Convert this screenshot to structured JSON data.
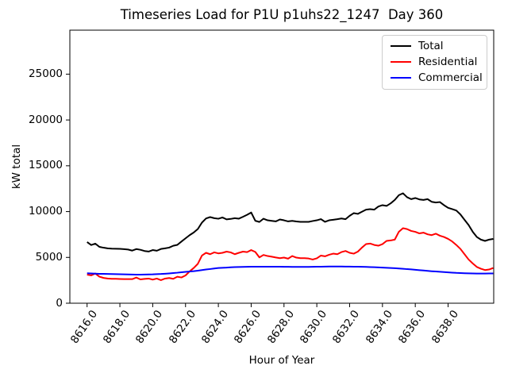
{
  "title": "Timeseries Load for P1U p1uhs22_1247  Day 360",
  "chart_data": {
    "type": "line",
    "title": "Timeseries Load for P1U p1uhs22_1247  Day 360",
    "xlabel": "Hour of Year",
    "ylabel": "kW total",
    "xlim": [
      8614.95,
      8640.78
    ],
    "ylim": [
      0,
      29800
    ],
    "grid": false,
    "legend_position": "upper right",
    "x_ticks": [
      8616,
      8618,
      8620,
      8622,
      8624,
      8626,
      8628,
      8630,
      8632,
      8634,
      8636,
      8638
    ],
    "x_tick_labels": [
      "8616.0",
      "8618.0",
      "8620.0",
      "8622.0",
      "8624.0",
      "8626.0",
      "8628.0",
      "8630.0",
      "8632.0",
      "8634.0",
      "8636.0",
      "8638.0"
    ],
    "y_ticks": [
      0,
      5000,
      10000,
      15000,
      20000,
      25000
    ],
    "y_tick_labels": [
      "0",
      "5000",
      "10000",
      "15000",
      "20000",
      "25000"
    ],
    "x_start": 8616.0,
    "x_step": 0.25,
    "series": [
      {
        "name": "Total",
        "color": "#000000",
        "values": [
          6680,
          6350,
          6500,
          6150,
          6060,
          5990,
          5960,
          5950,
          5930,
          5900,
          5860,
          5740,
          5910,
          5830,
          5700,
          5640,
          5800,
          5730,
          5920,
          5990,
          6070,
          6270,
          6370,
          6730,
          7080,
          7430,
          7720,
          8100,
          8800,
          9250,
          9400,
          9280,
          9220,
          9360,
          9150,
          9200,
          9280,
          9230,
          9430,
          9650,
          9900,
          9000,
          8870,
          9225,
          9050,
          8990,
          8930,
          9140,
          9050,
          8930,
          8990,
          8920,
          8880,
          8880,
          8880,
          8970,
          9050,
          9180,
          8880,
          9050,
          9110,
          9170,
          9250,
          9170,
          9540,
          9830,
          9750,
          9980,
          10210,
          10270,
          10210,
          10550,
          10700,
          10620,
          10900,
          11270,
          11790,
          12000,
          11570,
          11360,
          11480,
          11330,
          11270,
          11360,
          11070,
          10990,
          11040,
          10700,
          10410,
          10270,
          10120,
          9690,
          9110,
          8530,
          7800,
          7230,
          6940,
          6800,
          6940,
          7020
        ]
      },
      {
        "name": "Residential",
        "color": "#ff0000",
        "values": [
          3120,
          3040,
          3240,
          2900,
          2760,
          2700,
          2660,
          2660,
          2640,
          2630,
          2630,
          2630,
          2800,
          2600,
          2650,
          2690,
          2580,
          2690,
          2520,
          2690,
          2750,
          2660,
          2890,
          2810,
          3030,
          3470,
          3850,
          4300,
          5200,
          5500,
          5350,
          5550,
          5440,
          5500,
          5630,
          5550,
          5350,
          5500,
          5630,
          5580,
          5800,
          5600,
          5000,
          5270,
          5150,
          5080,
          4990,
          4920,
          4980,
          4860,
          5150,
          4980,
          4920,
          4920,
          4880,
          4770,
          4900,
          5200,
          5120,
          5290,
          5410,
          5350,
          5580,
          5700,
          5500,
          5410,
          5630,
          6070,
          6450,
          6510,
          6360,
          6280,
          6450,
          6800,
          6850,
          6940,
          7800,
          8190,
          8090,
          7890,
          7790,
          7620,
          7700,
          7520,
          7430,
          7590,
          7370,
          7230,
          7020,
          6740,
          6360,
          5930,
          5350,
          4770,
          4340,
          3960,
          3760,
          3620,
          3680,
          3850
        ]
      },
      {
        "name": "Commercial",
        "color": "#0000ff",
        "values": [
          3270,
          3250,
          3230,
          3210,
          3200,
          3190,
          3180,
          3170,
          3160,
          3150,
          3140,
          3130,
          3120,
          3120,
          3130,
          3140,
          3150,
          3170,
          3190,
          3220,
          3250,
          3290,
          3330,
          3380,
          3420,
          3460,
          3500,
          3550,
          3620,
          3680,
          3730,
          3790,
          3840,
          3870,
          3890,
          3920,
          3940,
          3950,
          3960,
          3970,
          3980,
          3990,
          3990,
          3990,
          3990,
          3990,
          3985,
          3980,
          3975,
          3970,
          3965,
          3960,
          3960,
          3960,
          3965,
          3970,
          3980,
          3990,
          4000,
          4005,
          4010,
          4010,
          4005,
          4000,
          3995,
          3990,
          3985,
          3975,
          3960,
          3945,
          3930,
          3910,
          3890,
          3865,
          3845,
          3820,
          3790,
          3760,
          3720,
          3690,
          3650,
          3610,
          3570,
          3530,
          3490,
          3460,
          3430,
          3400,
          3370,
          3340,
          3310,
          3290,
          3270,
          3255,
          3245,
          3240,
          3240,
          3240,
          3245,
          3250
        ]
      }
    ]
  }
}
